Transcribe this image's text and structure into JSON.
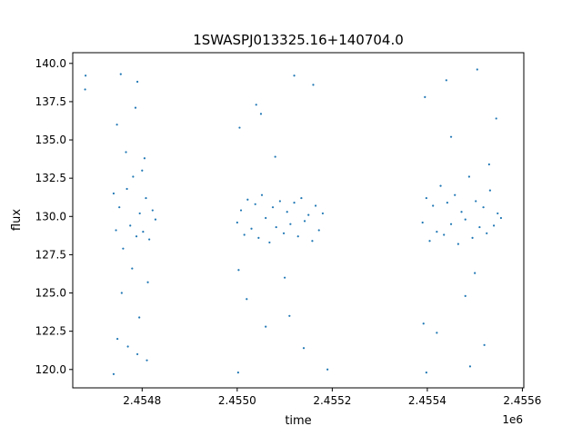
{
  "chart_data": {
    "type": "scatter",
    "title": "1SWASPJ013325.16+140704.0",
    "xlabel": "time",
    "ylabel": "flux",
    "x_offset_label": "1e6",
    "xlim": [
      2454654,
      2455603
    ],
    "ylim": [
      118.8,
      140.7
    ],
    "x_ticks": [
      2454800,
      2455000,
      2455200,
      2455400,
      2455600
    ],
    "x_tick_labels": [
      "2.4548",
      "2.4550",
      "2.4552",
      "2.4554",
      "2.4556"
    ],
    "y_ticks": [
      120.0,
      122.5,
      125.0,
      127.5,
      130.0,
      132.5,
      135.0,
      137.5,
      140.0
    ],
    "y_tick_labels": [
      "120.0",
      "122.5",
      "125.0",
      "127.5",
      "130.0",
      "132.5",
      "135.0",
      "137.5",
      "140.0"
    ],
    "grid": false,
    "marker_color": "#1f77b4",
    "series": [
      {
        "name": "",
        "x": [
          2454680,
          2454681,
          2454740,
          2454745,
          2454752,
          2454760,
          2454768,
          2454775,
          2454781,
          2454788,
          2454795,
          2454802,
          2454808,
          2454815,
          2454822,
          2454828,
          2454747,
          2454757,
          2454766,
          2454779,
          2454786,
          2454794,
          2454805,
          2454812,
          2454748,
          2454770,
          2454790,
          2454810,
          2454740,
          2454800,
          2454755,
          2454790,
          2455000,
          2455008,
          2455015,
          2455022,
          2455030,
          2455038,
          2455045,
          2455052,
          2455060,
          2455068,
          2455075,
          2455082,
          2455090,
          2455098,
          2455105,
          2455112,
          2455120,
          2455128,
          2455135,
          2455142,
          2455150,
          2455158,
          2455165,
          2455172,
          2455180,
          2455005,
          2455020,
          2455040,
          2455060,
          2455080,
          2455100,
          2455120,
          2455140,
          2455002,
          2455050,
          2455110,
          2455160,
          2455003,
          2455190,
          2455390,
          2455398,
          2455405,
          2455412,
          2455420,
          2455428,
          2455435,
          2455442,
          2455450,
          2455458,
          2455465,
          2455472,
          2455480,
          2455488,
          2455495,
          2455502,
          2455510,
          2455518,
          2455525,
          2455532,
          2455540,
          2455548,
          2455555,
          2455395,
          2455420,
          2455450,
          2455480,
          2455505,
          2455520,
          2455545,
          2455392,
          2455440,
          2455490,
          2455530,
          2455398,
          2455500
        ],
        "y": [
          138.3,
          139.2,
          131.5,
          129.1,
          130.6,
          127.9,
          131.8,
          129.4,
          132.6,
          128.7,
          130.2,
          129.0,
          131.2,
          128.5,
          130.4,
          129.8,
          136.0,
          125.0,
          134.2,
          126.6,
          137.1,
          123.4,
          133.8,
          125.7,
          122.0,
          121.5,
          138.8,
          120.6,
          119.7,
          133.0,
          139.3,
          121.0,
          129.6,
          130.4,
          128.8,
          131.1,
          129.2,
          130.8,
          128.6,
          131.4,
          129.9,
          128.3,
          130.6,
          129.3,
          131.0,
          128.9,
          130.3,
          129.5,
          130.9,
          128.7,
          131.2,
          129.7,
          130.1,
          128.4,
          130.7,
          129.1,
          130.2,
          135.8,
          124.6,
          137.3,
          122.8,
          133.9,
          126.0,
          139.2,
          121.4,
          119.8,
          136.7,
          123.5,
          138.6,
          126.5,
          120.0,
          129.6,
          131.2,
          128.4,
          130.7,
          129.0,
          132.0,
          128.8,
          130.9,
          129.5,
          131.4,
          128.2,
          130.3,
          129.8,
          132.6,
          128.6,
          131.0,
          129.3,
          130.6,
          128.9,
          131.7,
          129.4,
          130.2,
          129.9,
          137.8,
          122.4,
          135.2,
          124.8,
          139.6,
          121.6,
          136.4,
          123.0,
          138.9,
          120.2,
          133.4,
          119.8,
          126.3
        ]
      }
    ]
  }
}
